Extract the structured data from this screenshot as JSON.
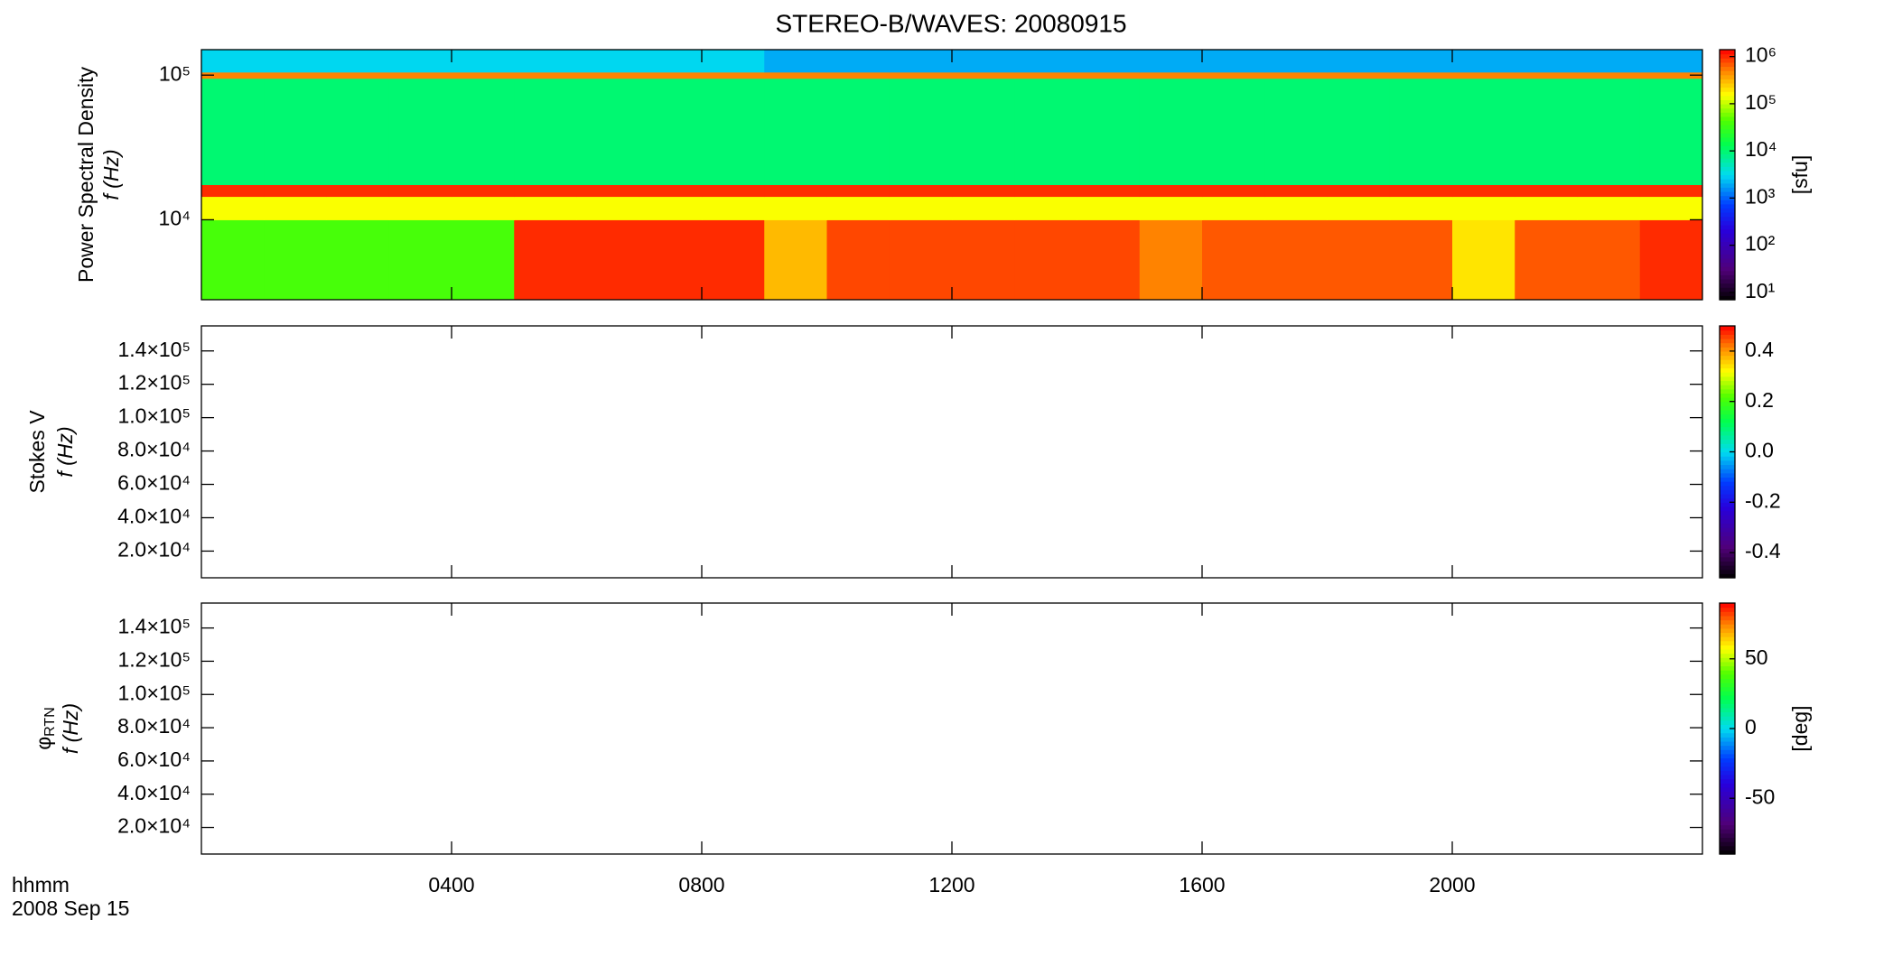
{
  "chart_data": {
    "type": "spectrogram",
    "title": "STEREO-B/WAVES: 20080915",
    "xlim": [
      0,
      24
    ],
    "xticks": [
      {
        "value": 4,
        "label": "0400"
      },
      {
        "value": 8,
        "label": "0800"
      },
      {
        "value": 12,
        "label": "1200"
      },
      {
        "value": 16,
        "label": "1600"
      },
      {
        "value": 20,
        "label": "2000"
      }
    ],
    "xlabel": [
      "hhmm",
      "2008 Sep 15"
    ],
    "panels": [
      {
        "quantity": "Power Spectral Density",
        "ylabel": "f (Hz)",
        "log": true,
        "ylim": [
          2800,
          150000
        ],
        "yticks": [
          {
            "value": 10000,
            "label": "10⁴"
          },
          {
            "value": 100000,
            "label": "10⁵"
          }
        ],
        "colorbar": {
          "log": true,
          "lim": [
            7,
            1400000
          ],
          "label": "[sfu]",
          "ticks": [
            {
              "value": 10,
              "label": "10¹"
            },
            {
              "value": 100,
              "label": "10²"
            },
            {
              "value": 1000,
              "label": "10³"
            },
            {
              "value": 10000,
              "label": "10⁴"
            },
            {
              "value": 100000,
              "label": "10⁵"
            },
            {
              "value": 1000000,
              "label": "10⁶"
            }
          ]
        },
        "spectrogram": {
          "x": [
            0,
            1,
            2,
            3,
            4,
            5,
            6,
            7,
            8,
            9,
            10,
            11,
            12,
            13,
            14,
            15,
            16,
            17,
            18,
            19,
            20,
            21,
            22,
            23,
            24
          ],
          "f": [
            2800,
            10000,
            14500,
            17500,
            95000,
            105000,
            150000
          ],
          "z": [
            [
              40000,
              40000,
              40000,
              40000,
              40000,
              1000000,
              1000000,
              1000000,
              1000000,
              300000,
              800000,
              800000,
              800000,
              800000,
              800000,
              500000,
              700000,
              700000,
              700000,
              700000,
              200000,
              700000,
              700000,
              1000000
            ],
            [
              150000,
              150000,
              150000,
              150000,
              150000,
              150000,
              150000,
              150000,
              150000,
              150000,
              150000,
              150000,
              150000,
              150000,
              150000,
              150000,
              150000,
              150000,
              150000,
              150000,
              150000,
              150000,
              150000,
              150000
            ],
            [
              1000000,
              1000000,
              1000000,
              1000000,
              1000000,
              1000000,
              1000000,
              1000000,
              1000000,
              1000000,
              1000000,
              1000000,
              1000000,
              1000000,
              1000000,
              1000000,
              1000000,
              1000000,
              1000000,
              1000000,
              1000000,
              1000000,
              1000000,
              1000000
            ],
            [
              10000,
              10000,
              10000,
              10000,
              10000,
              10000,
              10000,
              10000,
              10000,
              10000,
              10000,
              10000,
              10000,
              10000,
              10000,
              10000,
              10000,
              10000,
              10000,
              10000,
              10000,
              10000,
              10000,
              10000
            ],
            [
              500000,
              500000,
              500000,
              500000,
              500000,
              500000,
              500000,
              500000,
              500000,
              500000,
              500000,
              500000,
              500000,
              500000,
              500000,
              500000,
              500000,
              500000,
              500000,
              500000,
              500000,
              500000,
              500000,
              500000
            ],
            [
              3000,
              3000,
              3000,
              3000,
              3000,
              3000,
              3000,
              3000,
              3000,
              2000,
              2000,
              2000,
              2000,
              2000,
              2000,
              2000,
              2000,
              2000,
              2000,
              2000,
              2000,
              2000,
              2000,
              2000
            ]
          ]
        }
      },
      {
        "quantity": "Stokes V",
        "ylabel": "f (Hz)",
        "log": false,
        "ylim": [
          4000,
          155000
        ],
        "yticks": [
          {
            "value": 20000,
            "label": "2.0×10⁴"
          },
          {
            "value": 40000,
            "label": "4.0×10⁴"
          },
          {
            "value": 60000,
            "label": "6.0×10⁴"
          },
          {
            "value": 80000,
            "label": "8.0×10⁴"
          },
          {
            "value": 100000,
            "label": "1.0×10⁵"
          },
          {
            "value": 120000,
            "label": "1.2×10⁵"
          },
          {
            "value": 140000,
            "label": "1.4×10⁵"
          }
        ],
        "colorbar": {
          "log": false,
          "lim": [
            -0.5,
            0.5
          ],
          "ticks": [
            -0.4,
            -0.2,
            {
              "value": 0,
              "label": "0.0"
            },
            0.2,
            0.4
          ]
        }
      },
      {
        "quantity": "φ",
        "quantity_sub": "RTN",
        "ylabel": "f (Hz)",
        "log": false,
        "ylim": [
          4000,
          155000
        ],
        "yticks": [
          {
            "value": 20000,
            "label": "2.0×10⁴"
          },
          {
            "value": 40000,
            "label": "4.0×10⁴"
          },
          {
            "value": 60000,
            "label": "6.0×10⁴"
          },
          {
            "value": 80000,
            "label": "8.0×10⁴"
          },
          {
            "value": 100000,
            "label": "1.0×10⁵"
          },
          {
            "value": 120000,
            "label": "1.2×10⁵"
          },
          {
            "value": 140000,
            "label": "1.4×10⁵"
          }
        ],
        "colorbar": {
          "log": false,
          "lim": [
            -90,
            90
          ],
          "label": "[deg]",
          "ticks": [
            -50,
            0,
            50
          ]
        }
      }
    ]
  }
}
